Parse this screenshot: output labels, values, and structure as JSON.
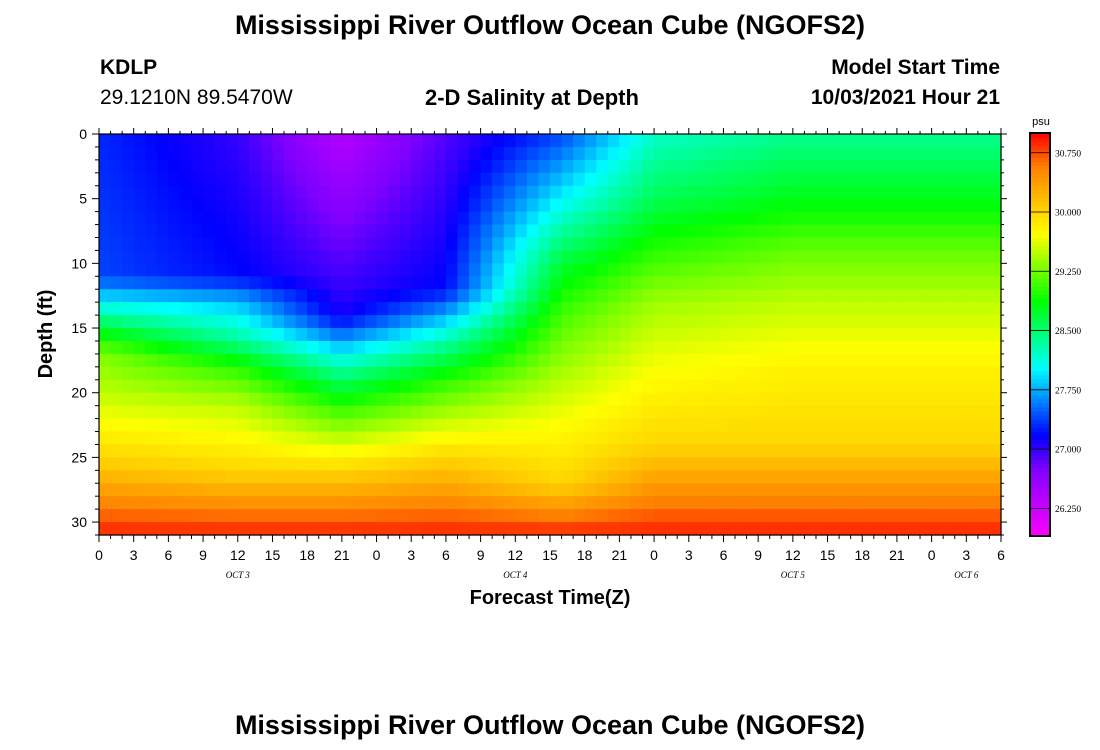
{
  "header": {
    "title": "Mississippi River Outflow Ocean Cube (NGOFS2)",
    "station_id": "KDLP",
    "station_coords": "29.1210N  89.5470W",
    "plot_subtitle": "2-D Salinity at Depth",
    "model_start_label": "Model Start Time",
    "model_start_value": "10/03/2021 Hour 21"
  },
  "footer": {
    "title": "Mississippi River Outflow Ocean Cube (NGOFS2)"
  },
  "chart_data": {
    "type": "heatmap",
    "title": "2-D Salinity at Depth",
    "xlabel": "Forecast Time(Z)",
    "ylabel": "Depth (ft)",
    "x_range_hours": [
      0,
      78
    ],
    "y_range_ft": [
      0,
      31
    ],
    "y_inverted": true,
    "x_tick_labels": [
      "0",
      "3",
      "6",
      "9",
      "12",
      "15",
      "18",
      "21",
      "0",
      "3",
      "6",
      "9",
      "12",
      "15",
      "18",
      "21",
      "0",
      "3",
      "6",
      "9",
      "12",
      "15",
      "18",
      "21",
      "0",
      "3",
      "6"
    ],
    "y_ticks": [
      0,
      5,
      10,
      15,
      20,
      25,
      30
    ],
    "day_labels": [
      {
        "label": "OCT 3",
        "hour": 12
      },
      {
        "label": "OCT 4",
        "hour": 36
      },
      {
        "label": "OCT 5",
        "hour": 60
      },
      {
        "label": "OCT 6",
        "hour": 75
      }
    ],
    "colorbar": {
      "unit": "psu",
      "min": 25.9,
      "max": 31.0,
      "labels": [
        "30.750",
        "30.000",
        "29.250",
        "28.500",
        "27.750",
        "27.000",
        "26.250"
      ],
      "label_values": [
        30.75,
        30.0,
        29.25,
        28.5,
        27.75,
        27.0,
        26.25
      ],
      "colors": [
        "#ff00ff",
        "#c000ff",
        "#8000ff",
        "#0000ff",
        "#0080ff",
        "#00ffff",
        "#00ff80",
        "#00ff00",
        "#80ff00",
        "#ffff00",
        "#ffc000",
        "#ff8000",
        "#ff0000"
      ]
    },
    "salinity_profiles": [
      {
        "hour": 0,
        "depth_ft": [
          0,
          11,
          13,
          15,
          17,
          20,
          25,
          31
        ],
        "psu": [
          27.3,
          27.4,
          28.0,
          28.7,
          29.3,
          29.5,
          30.0,
          30.9
        ]
      },
      {
        "hour": 12,
        "depth_ft": [
          0,
          11,
          13,
          16,
          18,
          21,
          26,
          31
        ],
        "psu": [
          27.0,
          27.2,
          27.8,
          28.4,
          29.0,
          29.5,
          30.0,
          30.9
        ]
      },
      {
        "hour": 21,
        "depth_ft": [
          0,
          14,
          18,
          21,
          23,
          26,
          31
        ],
        "psu": [
          26.4,
          27.1,
          28.3,
          29.0,
          29.4,
          30.0,
          30.9
        ]
      },
      {
        "hour": 30,
        "depth_ft": [
          0,
          12,
          16,
          19,
          22,
          25,
          31
        ],
        "psu": [
          26.9,
          27.2,
          28.3,
          29.0,
          29.5,
          30.0,
          30.9
        ]
      },
      {
        "hour": 40,
        "depth_ft": [
          0,
          5,
          10,
          14,
          18,
          22,
          27,
          31
        ],
        "psu": [
          27.4,
          28.0,
          28.7,
          29.1,
          29.4,
          29.7,
          30.0,
          30.9
        ]
      },
      {
        "hour": 48,
        "depth_ft": [
          0,
          5,
          9,
          13,
          18,
          24,
          31
        ],
        "psu": [
          28.2,
          28.6,
          29.0,
          29.4,
          29.7,
          30.0,
          30.9
        ]
      },
      {
        "hour": 60,
        "depth_ft": [
          0,
          5,
          9,
          13,
          18,
          24,
          31
        ],
        "psu": [
          28.4,
          28.8,
          29.2,
          29.5,
          29.8,
          30.0,
          30.9
        ]
      },
      {
        "hour": 78,
        "depth_ft": [
          0,
          5,
          9,
          13,
          18,
          24,
          31
        ],
        "psu": [
          28.4,
          28.8,
          29.2,
          29.5,
          29.8,
          30.0,
          30.9
        ]
      }
    ]
  }
}
